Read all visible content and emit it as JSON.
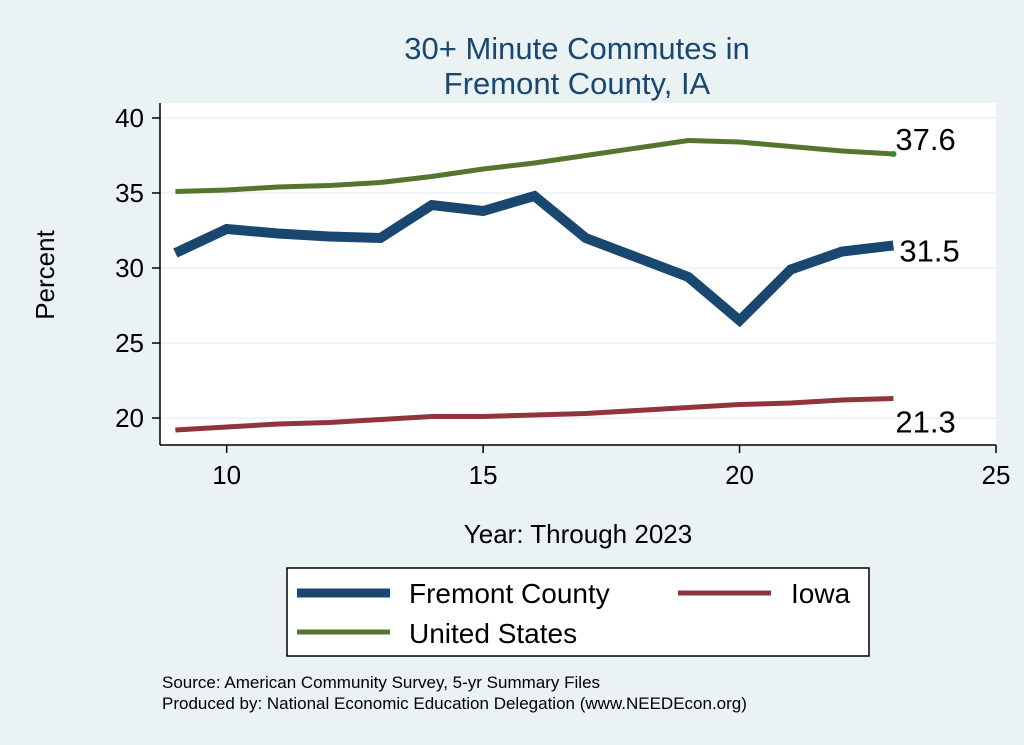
{
  "chart_data": {
    "type": "line",
    "title": [
      "30+ Minute Commutes in",
      "Fremont County, IA"
    ],
    "xlabel": "Year: Through 2023",
    "ylabel": "Percent",
    "xlim": [
      8.7,
      25
    ],
    "ylim": [
      18.2,
      41
    ],
    "xticks": [
      10,
      15,
      20,
      25
    ],
    "yticks": [
      20,
      25,
      30,
      35,
      40
    ],
    "grid": true,
    "legend_position": "bottom",
    "series": [
      {
        "name": "Fremont County",
        "color": "#1a476f",
        "x": [
          9,
          10,
          11,
          12,
          13,
          14,
          15,
          16,
          17,
          18,
          19,
          20,
          21,
          22,
          23
        ],
        "values": [
          31.0,
          32.6,
          32.3,
          32.1,
          32.0,
          34.2,
          33.8,
          34.8,
          32.0,
          30.7,
          29.4,
          26.5,
          29.9,
          31.1,
          31.5
        ],
        "end_label": "31.5"
      },
      {
        "name": "Iowa",
        "color": "#90353b",
        "x": [
          9,
          10,
          11,
          12,
          13,
          14,
          15,
          16,
          17,
          18,
          19,
          20,
          21,
          22,
          23
        ],
        "values": [
          19.2,
          19.4,
          19.6,
          19.7,
          19.9,
          20.1,
          20.1,
          20.2,
          20.3,
          20.5,
          20.7,
          20.9,
          21.0,
          21.2,
          21.3
        ],
        "end_label": "21.3"
      },
      {
        "name": "United States",
        "color": "#55752f",
        "x": [
          9,
          10,
          11,
          12,
          13,
          14,
          15,
          16,
          17,
          18,
          19,
          20,
          21,
          22,
          23
        ],
        "values": [
          35.1,
          35.2,
          35.4,
          35.5,
          35.7,
          36.1,
          36.6,
          37.0,
          37.5,
          38.0,
          38.5,
          38.4,
          38.1,
          37.8,
          37.6
        ],
        "end_label": "37.6"
      }
    ],
    "source_lines": [
      "Source: American Community Survey, 5-yr Summary Files",
      "Produced by: National Economic Education Delegation (www.NEEDEcon.org)"
    ]
  }
}
